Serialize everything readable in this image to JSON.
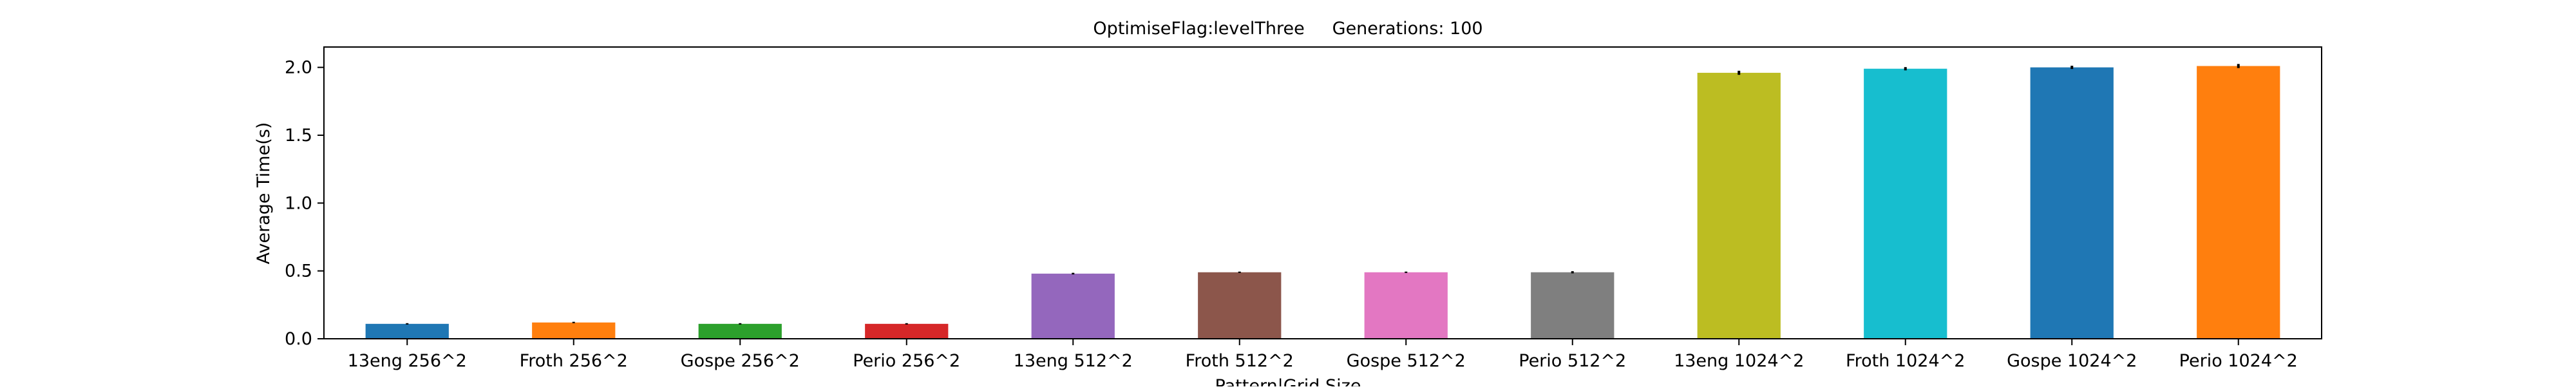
{
  "chart_data": {
    "type": "bar",
    "title": "OptimiseFlag:levelThree     Generations: 100",
    "xlabel": "Pattern|Grid Size",
    "ylabel": "Average Time(s)",
    "categories": [
      "13eng 256^2",
      "Froth 256^2",
      "Gospe 256^2",
      "Perio 256^2",
      "13eng 512^2",
      "Froth 512^2",
      "Gospe 512^2",
      "Perio 512^2",
      "13eng 1024^2",
      "Froth 1024^2",
      "Gospe 1024^2",
      "Perio 1024^2"
    ],
    "values": [
      0.11,
      0.12,
      0.11,
      0.11,
      0.48,
      0.49,
      0.49,
      0.49,
      1.96,
      1.99,
      2.0,
      2.01
    ],
    "errors": [
      0.005,
      0.005,
      0.005,
      0.005,
      0.006,
      0.005,
      0.005,
      0.008,
      0.015,
      0.012,
      0.012,
      0.015
    ],
    "colors": [
      "#1f77b4",
      "#ff7f0e",
      "#2ca02c",
      "#d62728",
      "#9467bd",
      "#8c564b",
      "#e377c2",
      "#7f7f7f",
      "#bcbd22",
      "#17becf",
      "#1f77b4",
      "#ff7f0e"
    ],
    "ylim": [
      0,
      2.15
    ],
    "yticks": [
      0.0,
      0.5,
      1.0,
      1.5,
      2.0
    ],
    "ytick_labels": [
      "0.0",
      "0.5",
      "1.0",
      "1.5",
      "2.0"
    ],
    "grid": false,
    "legend": "none"
  }
}
